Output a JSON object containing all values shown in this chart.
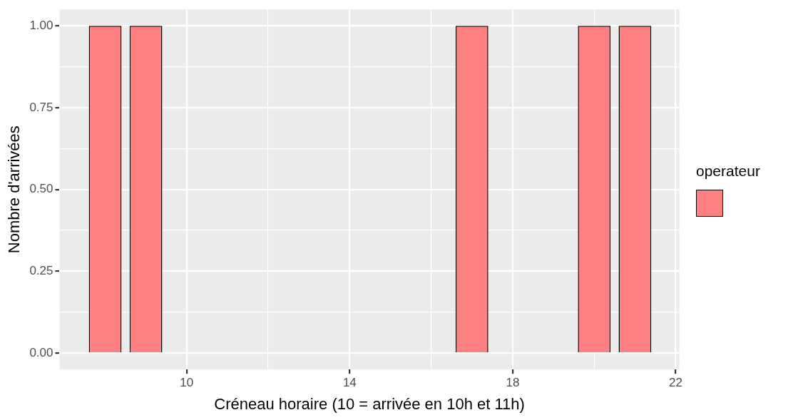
{
  "chart_data": {
    "type": "bar",
    "xlabel": "Créneau horaire (10 = arrivée en 10h et 11h)",
    "ylabel": "Nombre d'arrivées",
    "legend_title": "operateur",
    "grid": true,
    "x": [
      8,
      9,
      17,
      20,
      21
    ],
    "series": [
      {
        "color": "#ff8080",
        "values": [
          1,
          1,
          1,
          1,
          1
        ]
      }
    ],
    "xlim": [
      6.88,
      22.09
    ],
    "xticks": [
      10,
      {
        "value": 12,
        "label": null
      },
      14,
      {
        "value": 16,
        "label": null
      },
      18,
      {
        "value": 20,
        "label": null
      },
      22
    ],
    "ylim": [
      -0.05,
      1.05
    ],
    "yticks": [
      {
        "value": 0,
        "label": "0.00"
      },
      {
        "value": 0.125,
        "label": null
      },
      {
        "value": 0.25,
        "label": "0.25"
      },
      {
        "value": 0.375,
        "label": null
      },
      {
        "value": 0.5,
        "label": "0.50"
      },
      {
        "value": 0.625,
        "label": null
      },
      {
        "value": 0.75,
        "label": "0.75"
      },
      {
        "value": 0.875,
        "label": null
      },
      {
        "value": 1,
        "label": "1.00"
      }
    ]
  }
}
